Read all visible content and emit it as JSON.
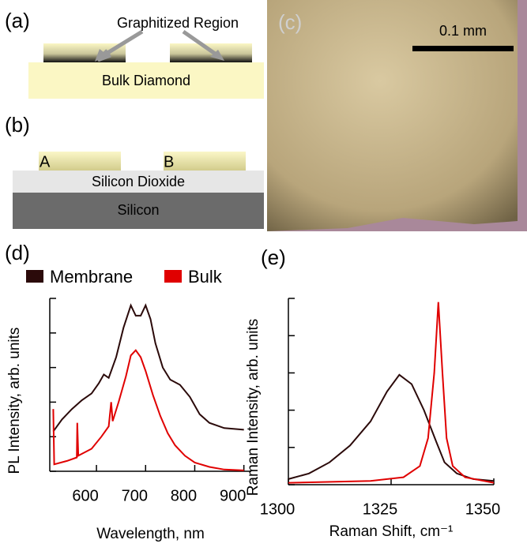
{
  "panels": {
    "a": {
      "label": "(a)",
      "callout": "Graphitized Region",
      "substrate": "Bulk Diamond"
    },
    "b": {
      "label": "(b)",
      "membrane_a": "A",
      "membrane_b": "B",
      "oxide": "Silicon Dioxide",
      "substrate": "Silicon"
    },
    "c": {
      "label": "(c)",
      "scale_bar": "0.1 mm"
    }
  },
  "chart_data": [
    {
      "type": "line",
      "panel_label": "(d)",
      "x_label": "Wavelength, nm",
      "y_label": "PL Intensity, arb. units",
      "xlim": [
        505,
        915
      ],
      "xticks": [
        600,
        700,
        800,
        900
      ],
      "ylim": [
        0,
        10
      ],
      "yticks": [
        0,
        2,
        4,
        6,
        8,
        10
      ],
      "series": [
        {
          "name": "Membrane",
          "color": "#2b0a0a",
          "x": [
            512,
            530,
            550,
            570,
            590,
            605,
            615,
            625,
            640,
            655,
            670,
            680,
            690,
            700,
            710,
            720,
            735,
            750,
            770,
            790,
            810,
            830,
            860,
            900
          ],
          "values": [
            2.3,
            3.0,
            3.6,
            4.1,
            4.5,
            5.1,
            5.6,
            5.4,
            6.6,
            8.3,
            9.6,
            9.0,
            9.0,
            9.6,
            8.8,
            7.4,
            6.0,
            5.3,
            5.0,
            4.3,
            3.3,
            2.8,
            2.5,
            2.4
          ]
        },
        {
          "name": "Bulk",
          "color": "#e00000",
          "x": [
            512,
            514,
            540,
            560,
            561,
            563,
            590,
            610,
            625,
            630,
            633,
            645,
            660,
            670,
            680,
            690,
            700,
            715,
            730,
            745,
            760,
            780,
            800,
            830,
            860,
            900
          ],
          "values": [
            3.6,
            0.4,
            0.6,
            0.8,
            2.8,
            0.9,
            1.3,
            2.0,
            2.6,
            4.0,
            2.9,
            4.0,
            5.5,
            6.7,
            7.0,
            6.6,
            5.8,
            4.4,
            3.2,
            2.2,
            1.5,
            0.9,
            0.5,
            0.25,
            0.1,
            0.05
          ]
        }
      ]
    },
    {
      "type": "line",
      "panel_label": "(e)",
      "x_label": "Raman Shift, cm⁻¹",
      "y_label": "Raman Intensity, arb. units",
      "xlim": [
        1300,
        1350
      ],
      "xticks": [
        1300,
        1325,
        1350
      ],
      "ylim": [
        0,
        10
      ],
      "yticks": [
        0,
        2,
        4,
        6,
        8,
        10
      ],
      "series": [
        {
          "color": "#2b0a0a",
          "x": [
            1300,
            1305,
            1310,
            1315,
            1320,
            1324,
            1327,
            1330,
            1333,
            1336,
            1338,
            1341,
            1345,
            1350
          ],
          "values": [
            0.3,
            0.6,
            1.2,
            2.1,
            3.4,
            5.0,
            5.9,
            5.4,
            4.0,
            2.3,
            1.2,
            0.6,
            0.3,
            0.2
          ]
        },
        {
          "color": "#e00000",
          "x": [
            1300,
            1320,
            1328,
            1332,
            1334,
            1335.5,
            1336.5,
            1337.5,
            1338.5,
            1340,
            1343,
            1350
          ],
          "values": [
            0.1,
            0.2,
            0.4,
            1.0,
            2.5,
            6.0,
            9.8,
            6.0,
            2.5,
            1.0,
            0.4,
            0.1
          ]
        }
      ]
    }
  ]
}
